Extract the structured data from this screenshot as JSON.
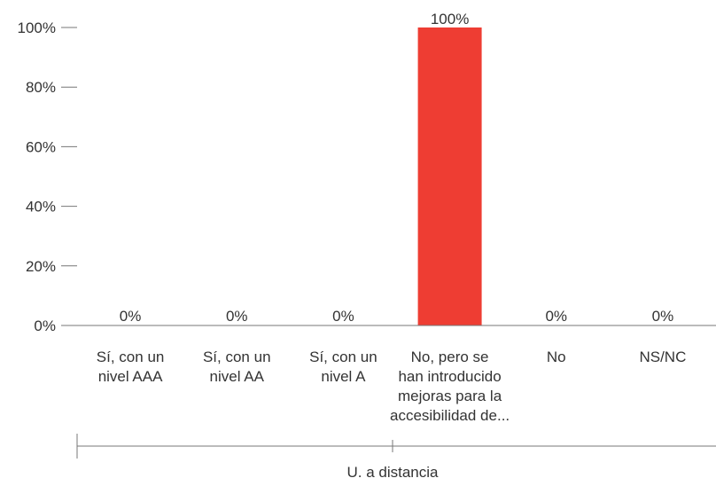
{
  "chart_data": {
    "type": "bar",
    "categories": [
      [
        "Sí, con un",
        "nivel AAA"
      ],
      [
        "Sí, con un",
        "nivel AA"
      ],
      [
        "Sí, con un",
        "nivel A"
      ],
      [
        "No, pero se",
        "han introducido",
        "mejoras para la",
        "accesibilidad de..."
      ],
      [
        "No"
      ],
      [
        "NS/NC"
      ]
    ],
    "values": [
      0,
      0,
      0,
      100,
      0,
      0
    ],
    "data_labels": [
      "0%",
      "0%",
      "0%",
      "100%",
      "0%",
      "0%"
    ],
    "ylim": [
      0,
      100
    ],
    "y_ticks": [
      0,
      20,
      40,
      60,
      80,
      100
    ],
    "y_tick_labels": [
      "0%",
      "20%",
      "40%",
      "60%",
      "80%",
      "100%"
    ],
    "group_label": "U. a distancia",
    "colors": {
      "bar": "#ee3d33",
      "axis": "#777777",
      "text": "#333333"
    }
  }
}
